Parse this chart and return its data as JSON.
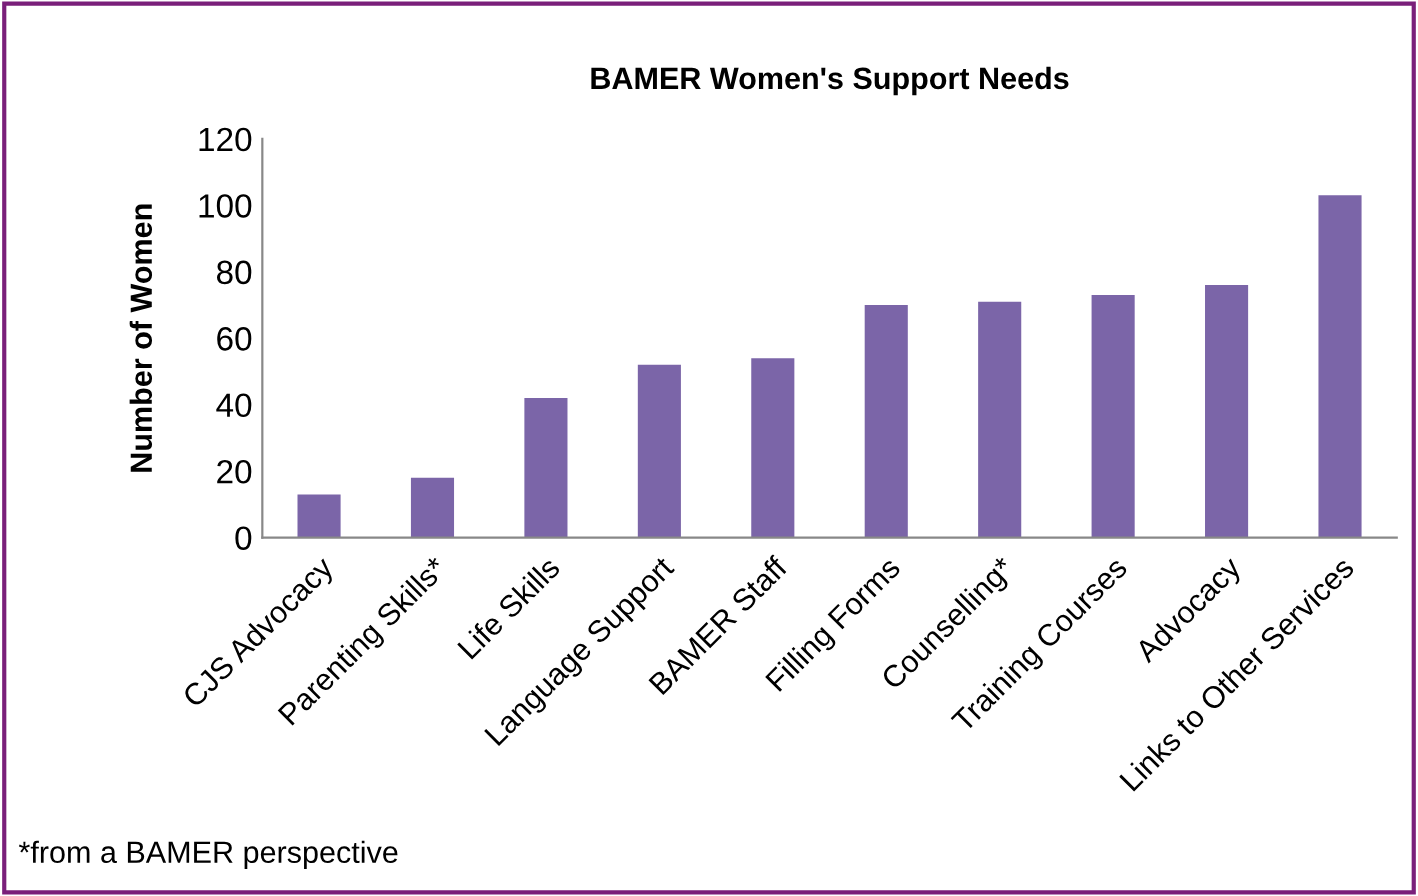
{
  "chart_data": {
    "type": "bar",
    "title": "BAMER Women's Support Needs",
    "ylabel": "Number of Women",
    "categories": [
      "CJS Advocacy",
      "Parenting Skills*",
      "Life Skills",
      "Language Support",
      "BAMER Staff",
      "Filling Forms",
      "Counselling*",
      "Training Courses",
      "Advocacy",
      "Links to Other Services"
    ],
    "values": [
      13,
      18,
      42,
      52,
      54,
      70,
      71,
      73,
      76,
      103
    ],
    "color": "#7b65a8",
    "ylim": [
      0,
      120
    ],
    "yticks": [
      0,
      20,
      40,
      60,
      80,
      100,
      120
    ],
    "grid": false,
    "legend": false,
    "annotations": [
      "*from a BAMER perspective"
    ]
  }
}
